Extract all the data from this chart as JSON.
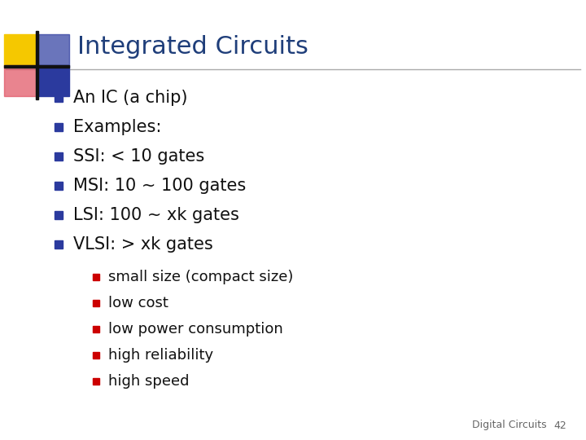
{
  "title": "Integrated Circuits",
  "title_color": "#1F3E7A",
  "title_fontsize": 22,
  "background_color": "#FFFFFF",
  "bullet_color": "#2B3A9E",
  "sub_bullet_color": "#CC0000",
  "bullet_items": [
    "An IC (a chip)",
    "Examples:",
    "SSI: < 10 gates",
    "MSI: 10 ~ 100 gates",
    "LSI: 100 ~ xk gates",
    "VLSI: > xk gates"
  ],
  "sub_bullet_items": [
    "small size (compact size)",
    "low cost",
    "low power consumption",
    "high reliability",
    "high speed"
  ],
  "bullet_fontsize": 15,
  "sub_bullet_fontsize": 13,
  "footer_text": "Digital Circuits",
  "footer_number": "42",
  "footer_fontsize": 9,
  "header_line_color": "#AAAAAA",
  "logo_yellow": "#F5C800",
  "logo_blue": "#2B3A9E",
  "logo_pink": "#E05060",
  "logo_blur_blue": "#6070CC"
}
